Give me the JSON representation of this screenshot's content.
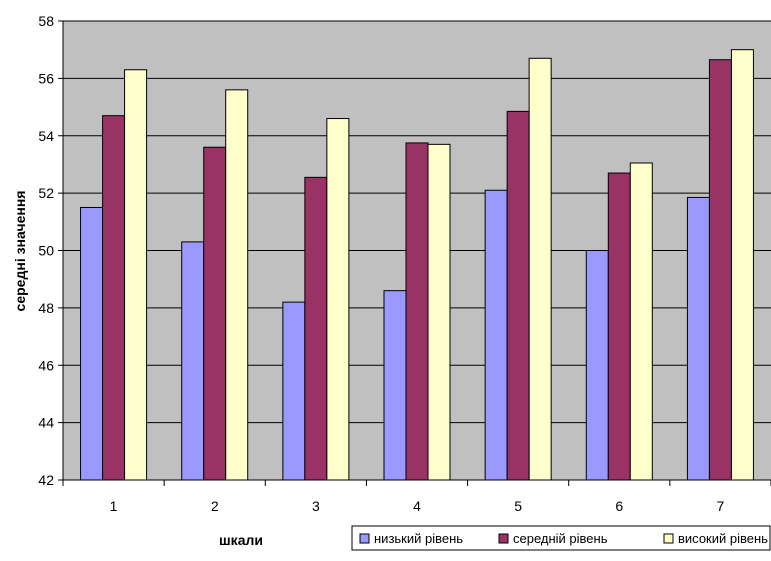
{
  "chart_data": {
    "type": "bar",
    "title": "",
    "xlabel": "шкали",
    "ylabel": "середні значення",
    "categories": [
      "1",
      "2",
      "3",
      "4",
      "5",
      "6",
      "7"
    ],
    "ylim": [
      42,
      58
    ],
    "yticks": [
      "42",
      "44",
      "46",
      "48",
      "50",
      "52",
      "54",
      "56",
      "58"
    ],
    "grid": true,
    "legend_position": "bottom-right",
    "series": [
      {
        "name": "низький рівень",
        "color": "#9999ff",
        "values": [
          51.5,
          50.3,
          48.2,
          48.6,
          52.1,
          50.0,
          51.85
        ]
      },
      {
        "name": "середній рівень",
        "color": "#993366",
        "values": [
          54.7,
          53.6,
          52.55,
          53.75,
          54.85,
          52.7,
          56.65
        ]
      },
      {
        "name": "високий рівень",
        "color": "#ffffcc",
        "values": [
          56.3,
          55.6,
          54.6,
          53.7,
          56.7,
          53.05,
          57.0
        ]
      }
    ],
    "colors": {
      "plot_background": "#c0c0c0",
      "gridline": "#000000"
    }
  }
}
